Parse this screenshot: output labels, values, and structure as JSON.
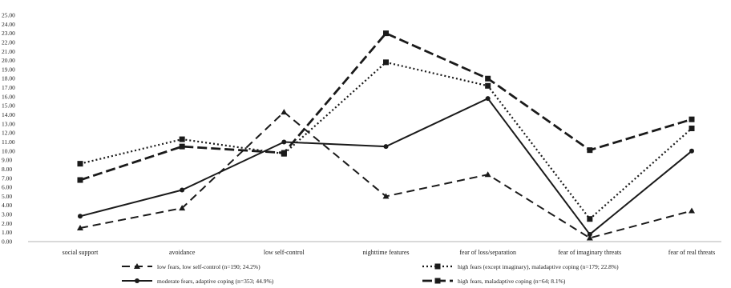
{
  "chart_data": {
    "type": "line",
    "title": "",
    "xlabel": "",
    "ylabel": "",
    "ylim": [
      0,
      25
    ],
    "y_tick_step": 1,
    "y_tick_labels": [
      "0.00",
      "1.00",
      "2.00",
      "3.00",
      "4.00",
      "5.00",
      "6.00",
      "7.00",
      "8.00",
      "9.00",
      "10.00",
      "11.00",
      "12.00",
      "13.00",
      "14.00",
      "15.00",
      "16.00",
      "17.00",
      "18.00",
      "19.00",
      "20.00",
      "21.00",
      "22.00",
      "23.00",
      "24.00",
      "25.00"
    ],
    "grid": false,
    "legend_position": "bottom",
    "categories": [
      "social support",
      "avoidance",
      "low self-control",
      "nighttime features",
      "fear of loss/separation",
      "fear of imaginary threats",
      "fear of real threats"
    ],
    "series": [
      {
        "name": "low fears, low self-control (n=190; 24.2%)",
        "style": "dashed",
        "marker": "triangle",
        "color": "#1a1a1a",
        "values": [
          1.5,
          3.7,
          14.3,
          5.0,
          7.4,
          0.4,
          3.4
        ]
      },
      {
        "name": "high fears (except imaginary), maladaptive coping (n=179; 22.8%)",
        "style": "dotted",
        "marker": "square",
        "color": "#1a1a1a",
        "values": [
          8.6,
          11.3,
          9.7,
          19.8,
          17.2,
          2.5,
          12.5
        ]
      },
      {
        "name": "moderate fears, adaptive coping (n=353; 44.9%)",
        "style": "solid",
        "marker": "circle",
        "color": "#1a1a1a",
        "values": [
          2.8,
          5.7,
          11.0,
          10.5,
          15.8,
          0.8,
          10.0
        ]
      },
      {
        "name": "high fears, maladaptive coping  (n=64; 8.1%)",
        "style": "longdash",
        "marker": "square",
        "color": "#1a1a1a",
        "values": [
          6.8,
          10.5,
          9.8,
          23.0,
          18.0,
          10.1,
          13.5
        ]
      }
    ]
  }
}
